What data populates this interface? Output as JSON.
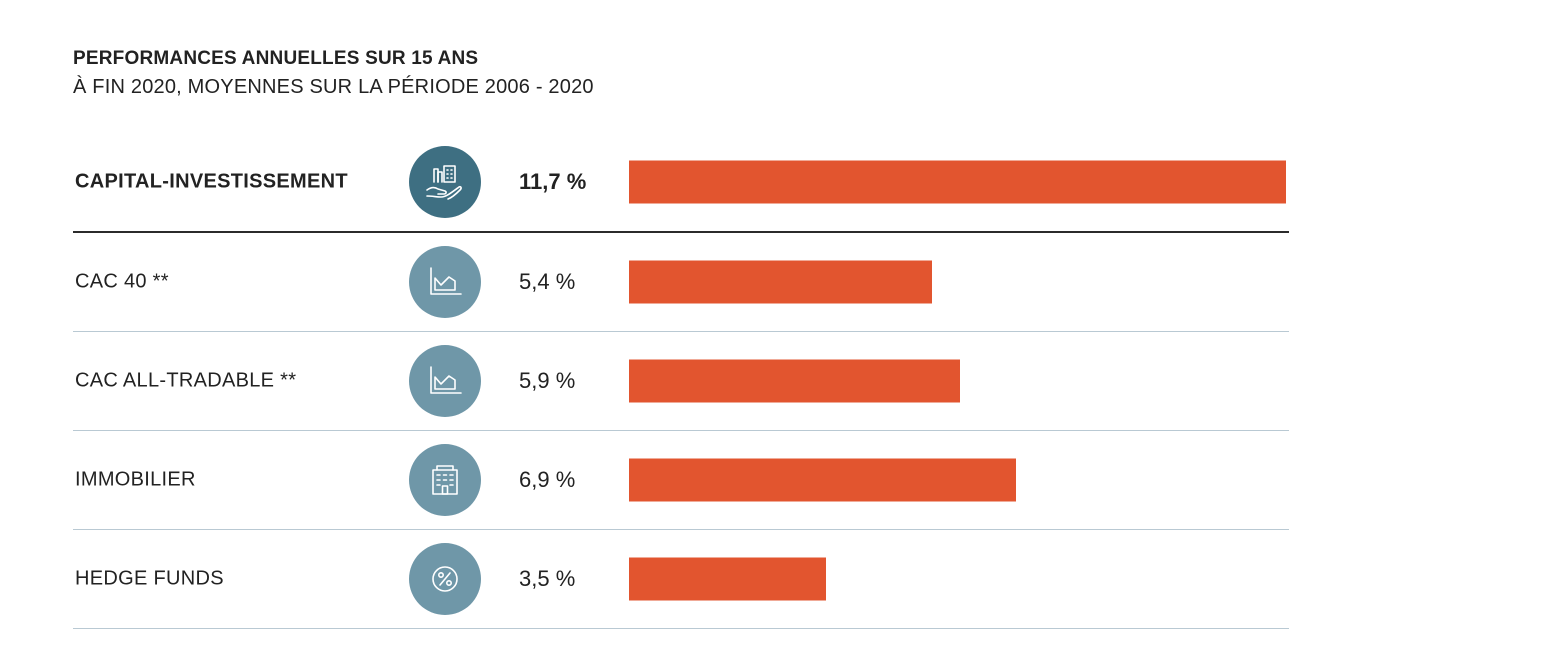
{
  "header": {
    "title": "PERFORMANCES ANNUELLES SUR 15 ANS",
    "subtitle": "À FIN 2020, MOYENNES SUR LA PÉRIODE 2006 - 2020"
  },
  "colors": {
    "bar": "#e2552f",
    "icon_dark": "#3e6f82",
    "icon_light": "#6f97a8"
  },
  "chart_data": {
    "type": "bar",
    "orientation": "horizontal",
    "title": "PERFORMANCES ANNUELLES SUR 15 ANS",
    "subtitle": "À FIN 2020, MOYENNES SUR LA PÉRIODE 2006 - 2020",
    "xlim": [
      0,
      11.7
    ],
    "grid": false,
    "legend": "none",
    "categories": [
      "CAPITAL-INVESTISSEMENT",
      "CAC 40 **",
      "CAC ALL-TRADABLE **",
      "IMMOBILIER",
      "HEDGE FUNDS"
    ],
    "values": [
      11.7,
      5.4,
      5.9,
      6.9,
      3.5
    ],
    "value_labels": [
      "11,7 %",
      "5,4 %",
      "5,9 %",
      "6,9 %",
      "3,5 %"
    ],
    "icons": [
      "hand-buildings-icon",
      "line-chart-icon",
      "line-chart-icon",
      "building-icon",
      "percent-icon"
    ]
  }
}
